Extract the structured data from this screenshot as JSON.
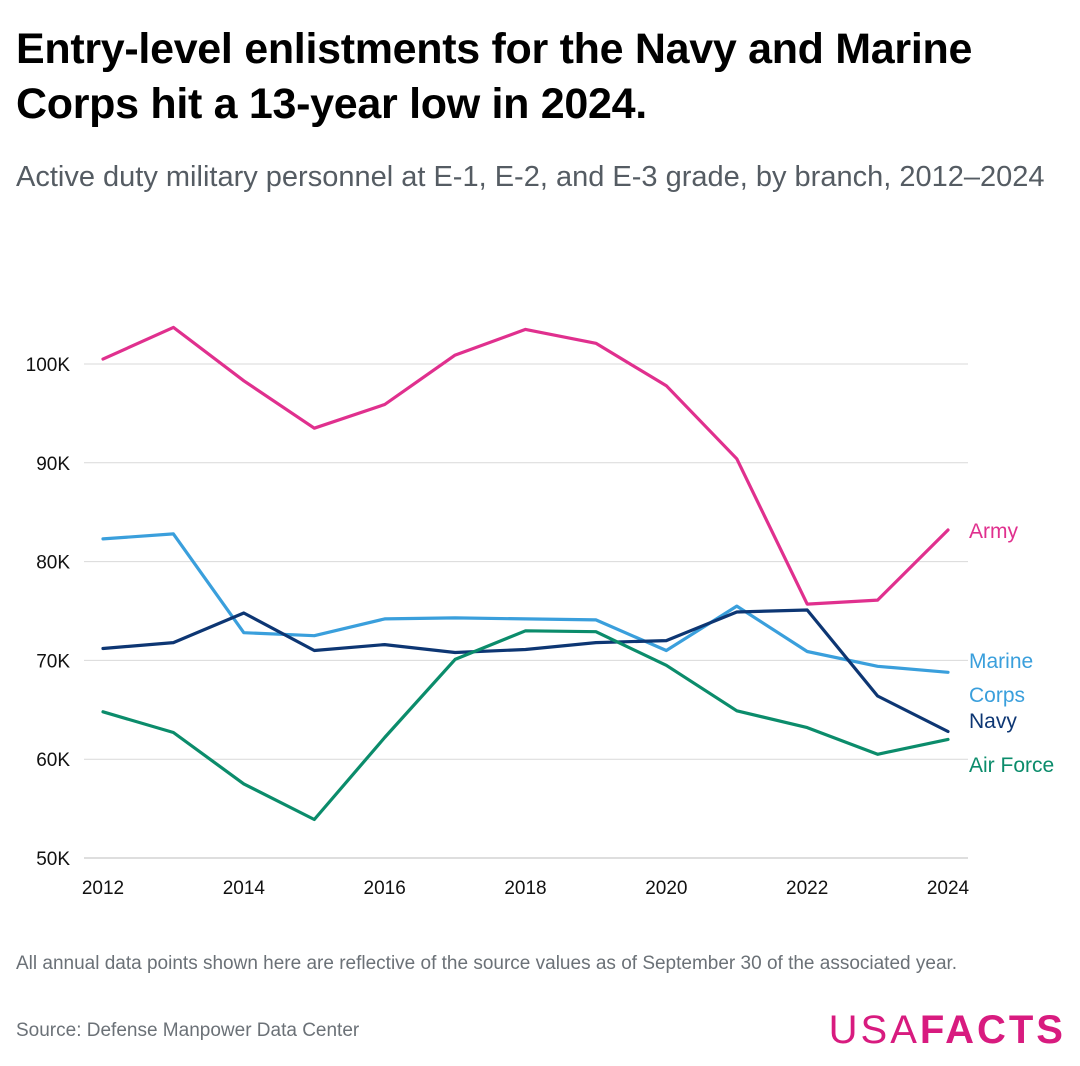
{
  "header": {
    "title": "Entry-level enlistments for the Navy and Marine Corps hit a 13-year low in 2024.",
    "subtitle": "Active duty military personnel at E-1, E-2, and E-3 grade, by branch, 2012–2024"
  },
  "footer": {
    "note": "All annual data points shown here are reflective of the source values as of September 30 of the associated year.",
    "source": "Source: Defense Manpower Data Center",
    "logo_usa": "USA",
    "logo_facts": "FACTS"
  },
  "colors": {
    "army": "#e0308e",
    "marine_corps": "#3a9fdc",
    "navy": "#0d3673",
    "air_force": "#0b8c6b",
    "grid": "#d9d9d9",
    "logo": "#d81b7f"
  },
  "chart_data": {
    "type": "line",
    "title": "Entry-level enlistments for the Navy and Marine Corps hit a 13-year low in 2024.",
    "x": [
      2012,
      2013,
      2014,
      2015,
      2016,
      2017,
      2018,
      2019,
      2020,
      2021,
      2022,
      2023,
      2024
    ],
    "x_ticks": [
      "2012",
      "2014",
      "2016",
      "2018",
      "2020",
      "2022",
      "2024"
    ],
    "y_ticks": [
      "50K",
      "60K",
      "70K",
      "80K",
      "90K",
      "100K"
    ],
    "ylim": [
      50000,
      100000
    ],
    "grid": true,
    "legend": "direct labels at line ends",
    "series": [
      {
        "key": "army",
        "name": "Army",
        "label_lines": [
          "Army"
        ],
        "values": [
          100500,
          103700,
          98300,
          93500,
          95900,
          100900,
          103500,
          102100,
          97800,
          90400,
          75700,
          76100,
          83200
        ]
      },
      {
        "key": "marine_corps",
        "name": "Marine Corps",
        "label_lines": [
          "Marine",
          "Corps"
        ],
        "values": [
          82300,
          82800,
          72800,
          72500,
          74200,
          74300,
          74200,
          74100,
          71000,
          75500,
          70900,
          69400,
          68800
        ]
      },
      {
        "key": "navy",
        "name": "Navy",
        "label_lines": [
          "Navy"
        ],
        "values": [
          71200,
          71800,
          74800,
          71000,
          71600,
          70800,
          71100,
          71800,
          72000,
          74900,
          75100,
          66400,
          62800
        ]
      },
      {
        "key": "air_force",
        "name": "Air Force",
        "label_lines": [
          "Air Force"
        ],
        "values": [
          64800,
          62700,
          57500,
          53900,
          62200,
          70100,
          73000,
          72900,
          69500,
          64900,
          63200,
          60500,
          62000
        ]
      }
    ]
  }
}
